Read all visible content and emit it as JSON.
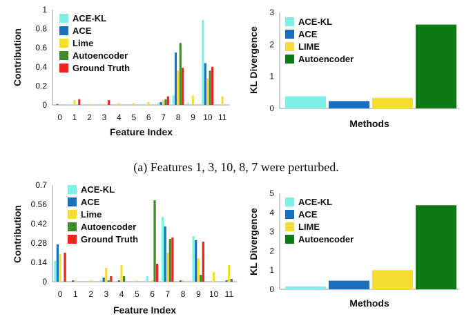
{
  "caption": "(a) Features 1, 3, 10, 8, 7 were perturbed.",
  "colors": {
    "ACE-KL": "#7ef0e6",
    "ACE": "#1a6fbf",
    "Lime": "#f5de33",
    "Autoencoder": "#3f8a2a",
    "Autoencoder_kl": "#0e7a16",
    "Ground Truth": "#e8281e"
  },
  "chart_data": [
    {
      "id": "a_contrib",
      "type": "bar",
      "xlabel": "Feature Index",
      "ylabel": "Contribution",
      "ylim": [
        0,
        1
      ],
      "yticks": [
        "0",
        "0.2",
        "0.4",
        "0.6",
        "0.8",
        "1"
      ],
      "categories": [
        "0",
        "1",
        "2",
        "3",
        "4",
        "5",
        "6",
        "7",
        "8",
        "9",
        "10",
        "11"
      ],
      "legend": "top-left",
      "series": [
        {
          "name": "ACE-KL",
          "values": [
            0,
            0.01,
            0,
            0.01,
            0,
            0,
            0.01,
            0.02,
            0.1,
            0.02,
            0.89,
            0
          ]
        },
        {
          "name": "ACE",
          "values": [
            0.01,
            0,
            0,
            0,
            0,
            0,
            0,
            0.03,
            0.55,
            0,
            0.44,
            0
          ]
        },
        {
          "name": "Lime",
          "values": [
            0,
            0.05,
            0.01,
            0.01,
            0.02,
            0.02,
            0.03,
            0.05,
            0.36,
            0.1,
            0.28,
            0.09
          ]
        },
        {
          "name": "Autoencoder",
          "values": [
            0,
            0,
            0,
            0,
            0,
            0,
            0,
            0.06,
            0.65,
            0,
            0.36,
            0
          ]
        },
        {
          "name": "Ground Truth",
          "values": [
            0,
            0.06,
            0,
            0.05,
            0,
            0,
            0,
            0.09,
            0.39,
            0,
            0.4,
            0
          ]
        }
      ]
    },
    {
      "id": "a_kl",
      "type": "bar",
      "xlabel": "Methods",
      "ylabel": "KL Divergence",
      "ylim": [
        0,
        3
      ],
      "yticks": [
        "0",
        "1",
        "2",
        "3"
      ],
      "legend": "top-left",
      "series": [
        {
          "name": "ACE-KL",
          "value": 0.38
        },
        {
          "name": "ACE",
          "value": 0.23
        },
        {
          "name": "LIME",
          "value": 0.33
        },
        {
          "name": "Autoencoder",
          "value": 2.62
        }
      ]
    },
    {
      "id": "b_contrib",
      "type": "bar",
      "xlabel": "Feature Index",
      "ylabel": "Contribution",
      "ylim": [
        0,
        0.7
      ],
      "yticks": [
        "0",
        "0.14",
        "0.28",
        "0.42",
        "0.56",
        "0.7"
      ],
      "categories": [
        "0",
        "1",
        "2",
        "3",
        "4",
        "5",
        "6",
        "7",
        "8",
        "9",
        "10",
        "11"
      ],
      "legend": "top-left",
      "series": [
        {
          "name": "ACE-KL",
          "values": [
            0.15,
            0,
            0,
            0.01,
            0,
            0,
            0.04,
            0.47,
            0,
            0.33,
            0,
            0
          ]
        },
        {
          "name": "ACE",
          "values": [
            0.27,
            0.01,
            0,
            0.03,
            0.01,
            0,
            0,
            0.4,
            0.01,
            0.3,
            0,
            0.01
          ]
        },
        {
          "name": "Lime",
          "values": [
            0.2,
            0.01,
            0.01,
            0.1,
            0.12,
            0.01,
            0.01,
            0.21,
            0.01,
            0.17,
            0.07,
            0.12
          ]
        },
        {
          "name": "Autoencoder",
          "values": [
            0,
            0,
            0,
            0.01,
            0.04,
            0,
            0.59,
            0.31,
            0,
            0.05,
            0,
            0.02
          ]
        },
        {
          "name": "Ground Truth",
          "values": [
            0.21,
            0,
            0,
            0.04,
            0,
            0,
            0.13,
            0.32,
            0,
            0.29,
            0,
            0
          ]
        }
      ]
    },
    {
      "id": "b_kl",
      "type": "bar",
      "xlabel": "Methods",
      "ylabel": "KL Divergence",
      "ylim": [
        0,
        5
      ],
      "yticks": [
        "0",
        "1",
        "2",
        "3",
        "4",
        "5"
      ],
      "legend": "top-left",
      "series": [
        {
          "name": "ACE-KL",
          "value": 0.15
        },
        {
          "name": "ACE",
          "value": 0.45
        },
        {
          "name": "LIME",
          "value": 1.0
        },
        {
          "name": "Autoencoder",
          "value": 4.38
        }
      ]
    }
  ]
}
